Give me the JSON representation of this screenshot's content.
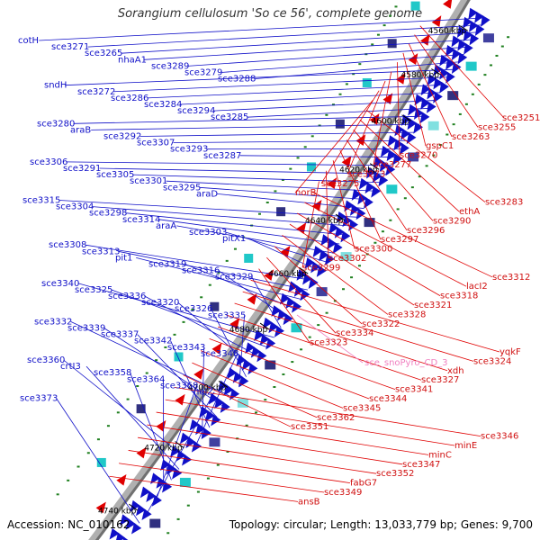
{
  "title": "Sorangium cellulosum 'So ce 56', complete genome",
  "footer": {
    "accession": "Accession: NC_010162",
    "stats": "Topology: circular; Length: 13,033,779 bp; Genes: 9,700"
  },
  "colors": {
    "plus_strand": "#1010c8",
    "minus_strand": "#e00000",
    "rna": "#f080c0",
    "backbone": "#a0a0a0",
    "gc_skew_dots": "#208020"
  },
  "ticks": [
    "4560 kbp",
    "4580 kbp",
    "4600 kbp",
    "4620 kbp",
    "4640 kbp",
    "4660 kbp",
    "4680 kbp",
    "4700 kbp",
    "4720 kbp",
    "4740 kbp"
  ],
  "plus_labels": [
    "cotH",
    "sce3271",
    "sce3265",
    "nhaA1",
    "sce3289",
    "sce3279",
    "sce3288",
    "sndH",
    "sce3272",
    "sce3286",
    "sce3284",
    "sce3294",
    "sce3285",
    "sce3280",
    "araB",
    "sce3292",
    "sce3307",
    "sce3293",
    "sce3287",
    "sce3306",
    "sce3291",
    "sce3305",
    "sce3301",
    "sce3295",
    "araD",
    "sce3315",
    "sce3304",
    "sce3298",
    "sce3314",
    "araA",
    "sce3303",
    "pitX1",
    "sce3308",
    "sce3313",
    "pit1",
    "sce3319",
    "sce3316",
    "sce3329",
    "sce3340",
    "sce3325",
    "sce3336",
    "sce3320",
    "sce3326",
    "sce3335",
    "sce3332",
    "sce3339",
    "sce3337",
    "sce3342",
    "sce3343",
    "sce3348",
    "sce3360",
    "crtI3",
    "sce3358",
    "sce3364",
    "sce3368",
    "helZ",
    "sce3373"
  ],
  "minus_labels": [
    "sce3251",
    "sce3255",
    "sce3263",
    "gspC1",
    "sce3270",
    "sce3277",
    "sce3273",
    "sce3275",
    "norB",
    "sce3283",
    "ethA",
    "sce3290",
    "sce3296",
    "sce3297",
    "sce3300",
    "sce3302",
    "sce3299",
    "sce3312",
    "lacI2",
    "sce3318",
    "sce3321",
    "sce3328",
    "sce3322",
    "sce3334",
    "sce3323",
    "yqkF",
    "sce3324",
    "xdh",
    "sce3327",
    "sce3341",
    "sce3344",
    "sce3345",
    "sce3362",
    "sce3351",
    "sce3346",
    "minE",
    "minC",
    "sce3347",
    "sce3352",
    "fabG7",
    "sce3349",
    "ansB"
  ],
  "rna_labels": [
    "sce_snoPyro_CD_3"
  ]
}
